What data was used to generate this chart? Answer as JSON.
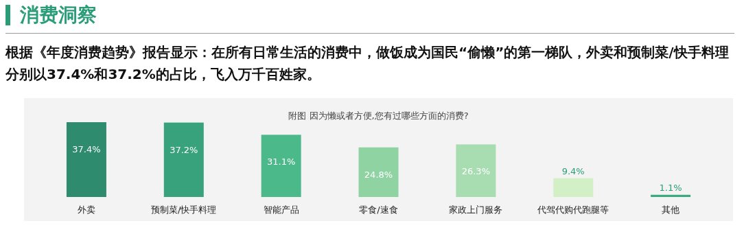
{
  "chart_data": {
    "type": "bar",
    "title": "消费洞察",
    "subtitle": "根据《年度消费趋势》报告显示：在所有日常生活的消费中，做饭成为国民“偷懒”的第一梯队，外卖和预制菜/快手料理分别以37.4%和37.2%的占比，飞入万千百姓家。",
    "annotations": [
      "附图 因为懒或者方便,您有过哪些方面的消费?"
    ],
    "categories": [
      "外卖",
      "预制菜/快手料理",
      "智能产品",
      "零食/速食",
      "家政上门服务",
      "代驾代购代跑腿等",
      "其他"
    ],
    "values": [
      37.4,
      37.2,
      31.1,
      24.8,
      26.3,
      9.4,
      1.1
    ],
    "value_labels": [
      "37.4%",
      "37.2%",
      "31.1%",
      "24.8%",
      "26.3%",
      "9.4%",
      "1.1%"
    ],
    "colors": [
      "#2e8b6e",
      "#37a27c",
      "#4cb98a",
      "#8fd3a3",
      "#a8ddb2",
      "#d3efc6",
      "#3aab7e"
    ],
    "grid": false
  }
}
